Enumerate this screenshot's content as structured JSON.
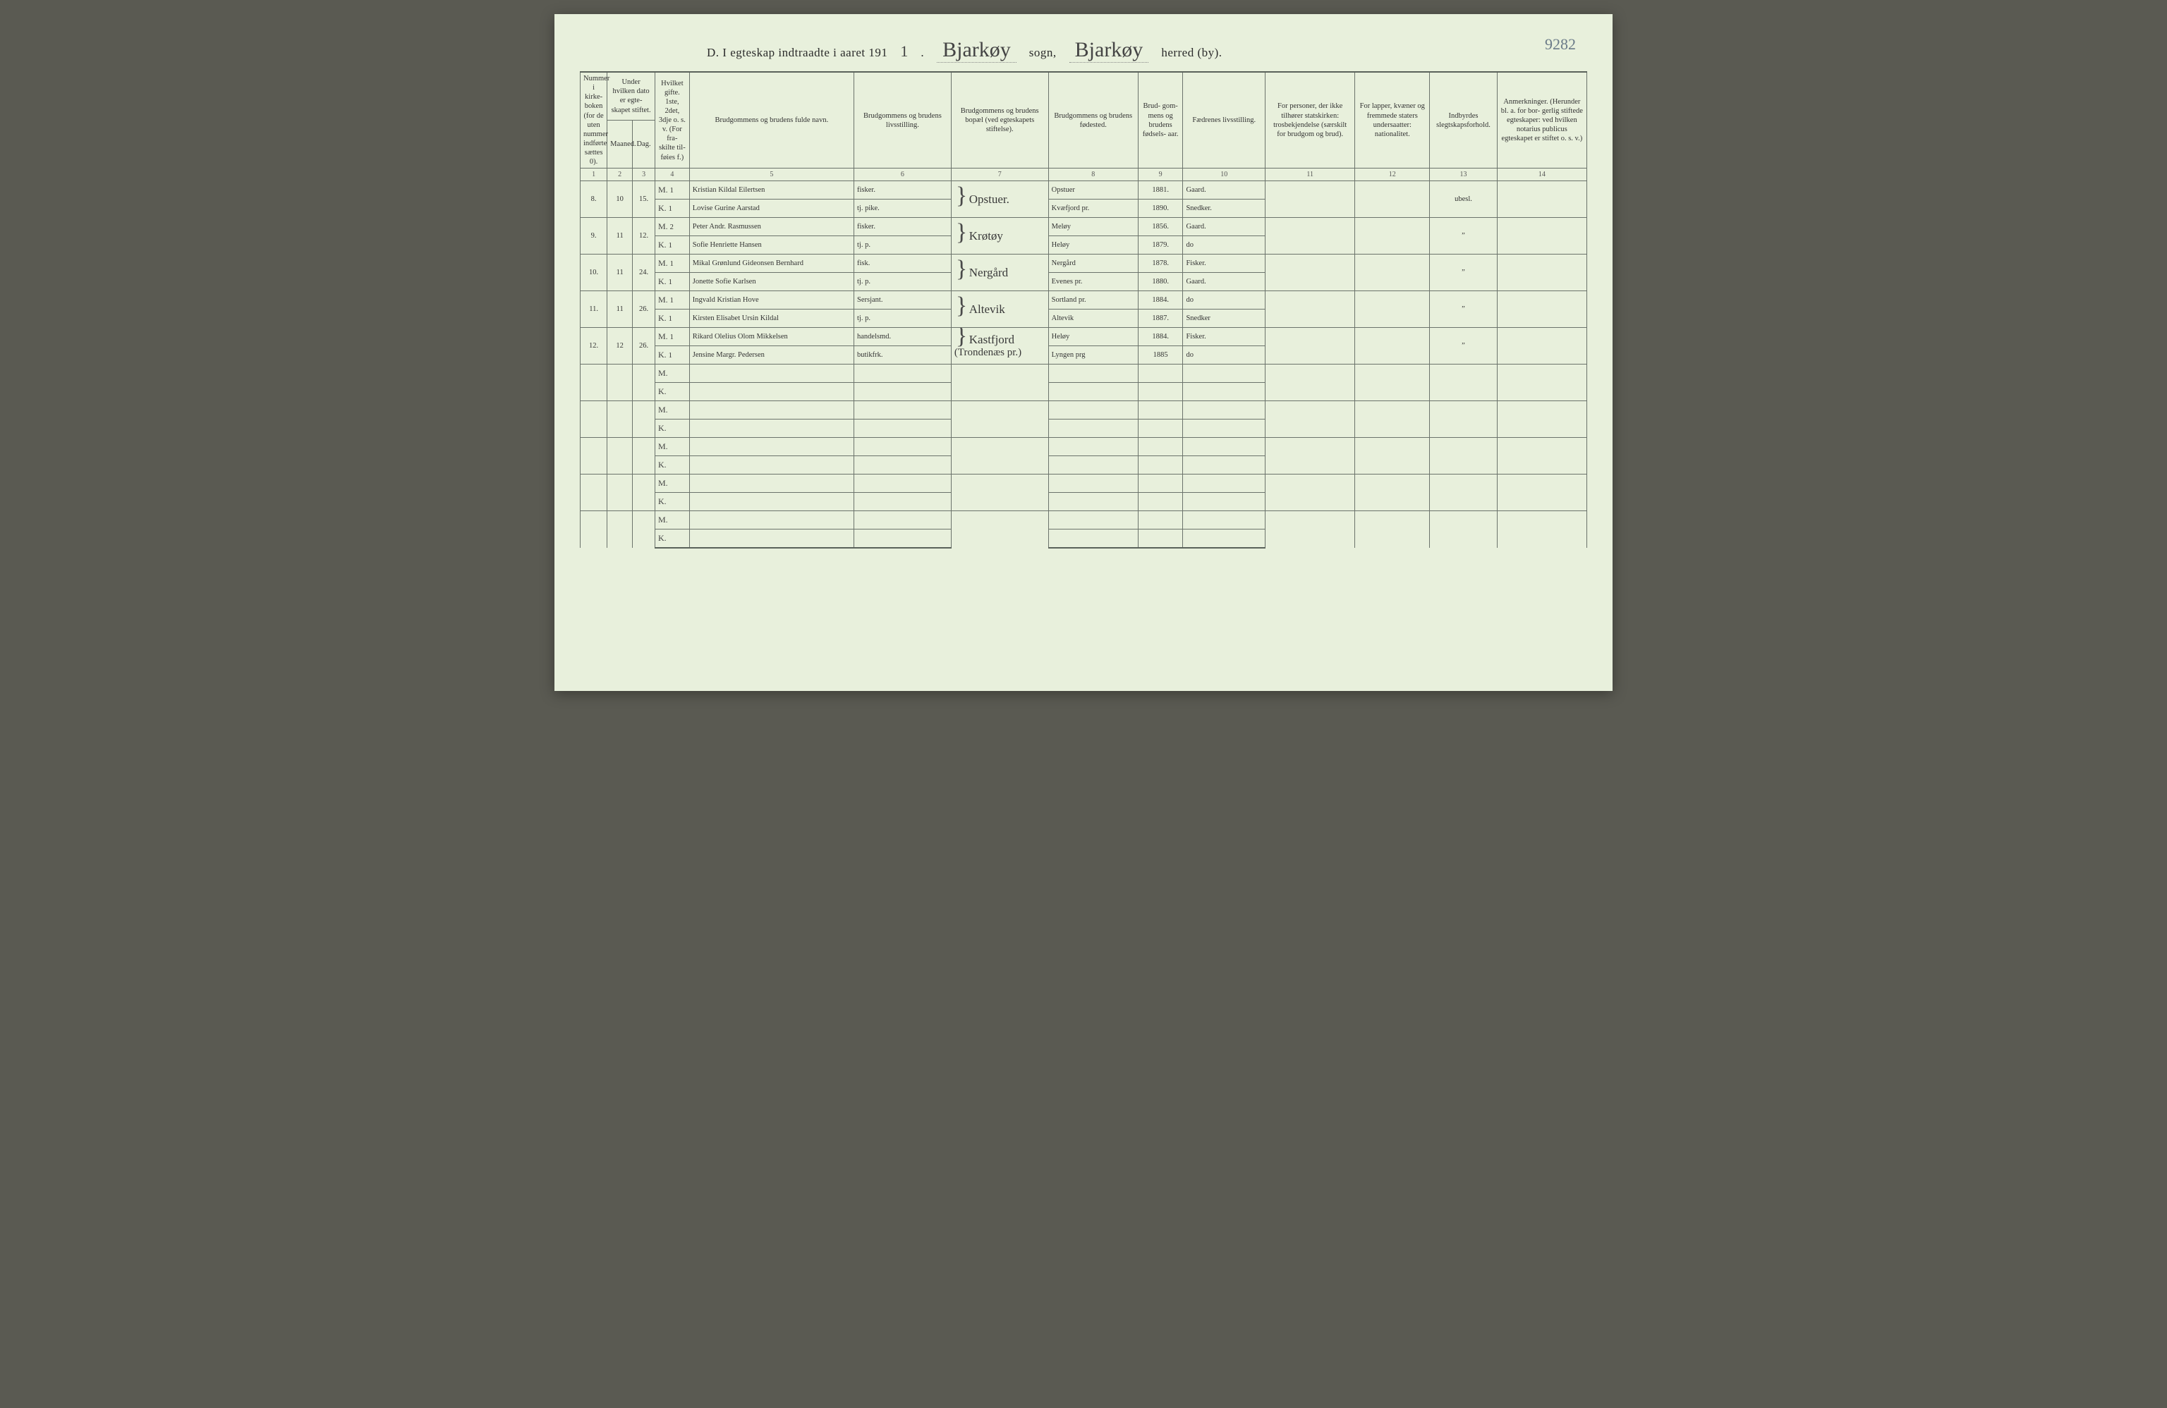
{
  "pageno": "9282",
  "header": {
    "prefix": "D.  I egteskap indtraadte i aaret 191",
    "yearDigit": "1",
    "dot": ".",
    "sogn": "Bjarkøy",
    "sognLabel": "sogn,",
    "herred": "Bjarkøy",
    "herredLabel": "herred (by)."
  },
  "columns": {
    "h1": "Nummer i kirke- boken (for de uten nummer indførte sættes 0).",
    "h2a": "Under hvilken dato er egte- skapet stiftet.",
    "h2": "Maaned.",
    "h3": "Dag.",
    "h4": "Hvilket gifte. 1ste, 2det, 3dje o. s. v. (For fra- skilte til- føies f.)",
    "h5": "Brudgommens og brudens fulde navn.",
    "h6": "Brudgommens og brudens livsstilling.",
    "h7": "Brudgommens og brudens bopæl (ved egteskapets stiftelse).",
    "h8": "Brudgommens og brudens fødested.",
    "h9": "Brud- gom- mens og brudens fødsels- aar.",
    "h10": "Fædrenes livsstilling.",
    "h11": "For personer, der ikke tilhører statskirken: trosbekjendelse (særskilt for brudgom og brud).",
    "h12": "For lapper, kvæner og fremmede staters undersaatter: nationalitet.",
    "h13": "Indbyrdes slegtskapsforhold.",
    "h14": "Anmerkninger. (Herunder bl. a. for bor- gerlig stiftede egteskaper: ved hvilken notarius publicus egteskapet er stiftet o. s. v.)"
  },
  "colnums": [
    "1",
    "2",
    "3",
    "4",
    "5",
    "6",
    "7",
    "8",
    "9",
    "10",
    "11",
    "12",
    "13",
    "14"
  ],
  "rows": [
    {
      "num": "8.",
      "maaned": "10",
      "dag": "15.",
      "m": {
        "gift": "1",
        "navn": "Kristian Kildal Eilertsen",
        "stilling": "fisker.",
        "bopael": "Opstuer.",
        "fodested": "Opstuer",
        "aar": "1881.",
        "faedre": "Gaard."
      },
      "k": {
        "gift": "1",
        "navn": "Lovise Gurine Aarstad",
        "stilling": "tj. pike.",
        "bopael": "",
        "fodested": "Kvæfjord pr.",
        "aar": "1890.",
        "faedre": "Snedker."
      },
      "slekt": "ubesl."
    },
    {
      "num": "9.",
      "maaned": "11",
      "dag": "12.",
      "m": {
        "gift": "2",
        "navn": "Peter Andr. Rasmussen",
        "stilling": "fisker.",
        "bopael": "Krøtøy",
        "fodested": "Meløy",
        "aar": "1856.",
        "faedre": "Gaard."
      },
      "k": {
        "gift": "1",
        "navn": "Sofie Henriette Hansen",
        "stilling": "tj. p.",
        "bopael": "",
        "fodested": "Heløy",
        "aar": "1879.",
        "faedre": "do"
      },
      "slekt": "”"
    },
    {
      "num": "10.",
      "maaned": "11",
      "dag": "24.",
      "m": {
        "gift": "1",
        "navn": "Mikal Grønlund Gideonsen Bernhard",
        "stilling": "fisk.",
        "bopael": "Nergård",
        "fodested": "Nergård",
        "aar": "1878.",
        "faedre": "Fisker."
      },
      "k": {
        "gift": "1",
        "navn": "Jonette Sofie Karlsen",
        "stilling": "tj. p.",
        "bopael": "",
        "fodested": "Evenes pr.",
        "aar": "1880.",
        "faedre": "Gaard."
      },
      "slekt": "”"
    },
    {
      "num": "11.",
      "maaned": "11",
      "dag": "26.",
      "m": {
        "gift": "1",
        "navn": "Ingvald Kristian Hove",
        "stilling": "Sersjant.",
        "bopael": "Altevik",
        "fodested": "Sortland pr.",
        "aar": "1884.",
        "faedre": "do"
      },
      "k": {
        "gift": "1",
        "navn": "Kirsten Elisabet Ursin Kildal",
        "stilling": "tj. p.",
        "bopael": "",
        "fodested": "Altevik",
        "aar": "1887.",
        "faedre": "Snedker"
      },
      "slekt": "”"
    },
    {
      "num": "12.",
      "maaned": "12",
      "dag": "26.",
      "m": {
        "gift": "1",
        "navn": "Rikard Olelius Olom Mikkelsen",
        "stilling": "handelsmd.",
        "bopael": "Kastfjord",
        "fodested": "Heløy",
        "aar": "1884.",
        "faedre": "Fisker."
      },
      "k": {
        "gift": "1",
        "navn": "Jensine Margr. Pedersen",
        "stilling": "butikfrk.",
        "bopael": "(Trondenæs pr.)",
        "fodested": "Lyngen prg",
        "aar": "1885",
        "faedre": "do"
      },
      "slekt": "”"
    }
  ],
  "emptyPairs": 5,
  "mk": {
    "m": "M.",
    "k": "K."
  }
}
